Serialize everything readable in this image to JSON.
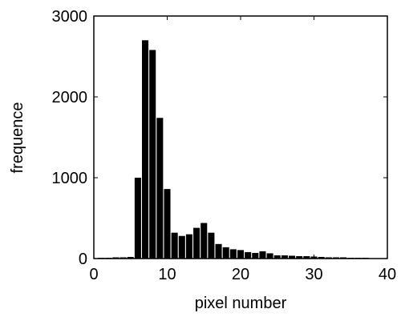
{
  "chart_data": {
    "type": "bar",
    "title": "",
    "xlabel": "pixel number",
    "ylabel": "frequence",
    "xlim": [
      0,
      40
    ],
    "ylim": [
      0,
      3000
    ],
    "xticks": [
      0,
      10,
      20,
      30,
      40
    ],
    "yticks": [
      0,
      1000,
      2000,
      3000
    ],
    "grid": false,
    "legend": "none",
    "bar_color": "#000000",
    "x": [
      1,
      2,
      3,
      4,
      5,
      6,
      7,
      8,
      9,
      10,
      11,
      12,
      13,
      14,
      15,
      16,
      17,
      18,
      19,
      20,
      21,
      22,
      23,
      24,
      25,
      26,
      27,
      28,
      29,
      30,
      31,
      32,
      33,
      34,
      35,
      36,
      37,
      38,
      39
    ],
    "values": [
      10,
      10,
      15,
      15,
      20,
      1000,
      2700,
      2580,
      1740,
      860,
      320,
      280,
      300,
      380,
      440,
      320,
      180,
      140,
      115,
      105,
      80,
      70,
      90,
      65,
      40,
      40,
      35,
      30,
      30,
      25,
      20,
      15,
      15,
      15,
      10,
      10,
      10,
      5,
      0
    ]
  }
}
